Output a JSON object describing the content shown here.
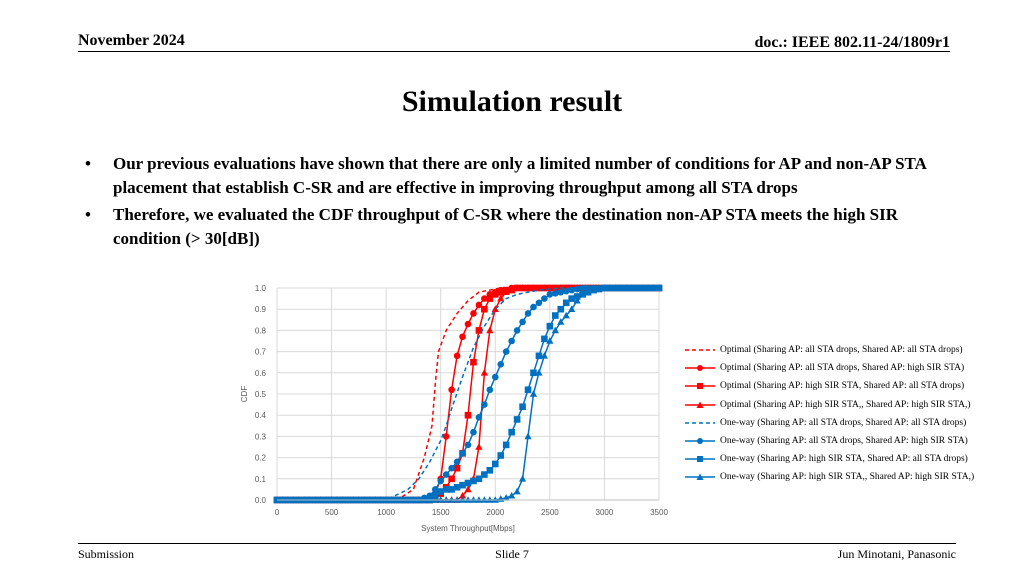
{
  "header": {
    "date": "November 2024",
    "doc": "doc.: IEEE 802.11-24/1809r1"
  },
  "title": "Simulation result",
  "bullets": [
    "Our previous evaluations have shown that there are only a limited number of conditions for AP and non-AP STA placement that establish C-SR and are effective in improving throughput among all STA drops",
    "Therefore, we evaluated the CDF throughput of C-SR where the destination non-AP STA meets the high SIR condition (> 30[dB])"
  ],
  "bullet_glyph": "•",
  "footer": {
    "left": "Submission",
    "center": "Slide 7",
    "right": "Jun Minotani, Panasonic"
  },
  "chart_data": {
    "type": "line",
    "xlabel": "System Throughput[Mbps]",
    "ylabel": "CDF",
    "xlim": [
      0,
      3500
    ],
    "ylim": [
      0,
      1
    ],
    "x_ticks": [
      "0",
      "500",
      "1000",
      "1500",
      "2000",
      "2500",
      "3000",
      "3500"
    ],
    "y_ticks": [
      "0.0",
      "0.1",
      "0.2",
      "0.3",
      "0.4",
      "0.5",
      "0.6",
      "0.7",
      "0.8",
      "0.9",
      "1.0"
    ],
    "grid": true,
    "legend_position": "right",
    "series": [
      {
        "name": "Optimal (Sharing AP: all STA drops, Shared AP: all STA drops)",
        "color": "#ff0000",
        "style": "dashed",
        "marker": "none",
        "x": [
          0,
          1100,
          1250,
          1350,
          1420,
          1450,
          1480,
          1550,
          1650,
          1750,
          1850,
          1950,
          2050,
          3500
        ],
        "y": [
          0,
          0,
          0.05,
          0.2,
          0.35,
          0.55,
          0.7,
          0.8,
          0.88,
          0.94,
          0.98,
          0.99,
          1.0,
          1.0
        ]
      },
      {
        "name": "Optimal (Sharing AP: all STA drops, Shared AP: high SIR STA)",
        "color": "#ff0000",
        "style": "solid",
        "marker": "circle",
        "x": [
          0,
          1300,
          1400,
          1450,
          1500,
          1550,
          1600,
          1650,
          1700,
          1750,
          1800,
          1850,
          1900,
          1950,
          2000,
          2050,
          2100,
          2150,
          2200,
          2300,
          3500
        ],
        "y": [
          0,
          0,
          0.01,
          0.03,
          0.1,
          0.3,
          0.52,
          0.68,
          0.77,
          0.83,
          0.88,
          0.92,
          0.95,
          0.97,
          0.98,
          0.99,
          0.99,
          1.0,
          1.0,
          1.0,
          1.0
        ]
      },
      {
        "name": "Optimal (Sharing AP: high SIR STA, Shared AP: all STA drops)",
        "color": "#ff0000",
        "style": "solid",
        "marker": "square",
        "x": [
          0,
          1400,
          1450,
          1500,
          1550,
          1600,
          1650,
          1700,
          1750,
          1800,
          1850,
          1900,
          1950,
          2000,
          2050,
          2100,
          2150,
          2200,
          2300,
          3500
        ],
        "y": [
          0,
          0,
          0.01,
          0.03,
          0.06,
          0.1,
          0.15,
          0.22,
          0.4,
          0.65,
          0.8,
          0.9,
          0.95,
          0.97,
          0.98,
          0.99,
          0.99,
          1.0,
          1.0,
          1.0
        ]
      },
      {
        "name": "Optimal (Sharing AP: high SIR STA,, Shared AP: high SIR STA,)",
        "color": "#ff0000",
        "style": "solid",
        "marker": "triangle",
        "x": [
          0,
          1650,
          1700,
          1750,
          1800,
          1850,
          1900,
          1950,
          2000,
          2050,
          2100,
          2150,
          2200,
          2300,
          3500
        ],
        "y": [
          0,
          0,
          0.02,
          0.05,
          0.1,
          0.25,
          0.6,
          0.8,
          0.9,
          0.95,
          0.98,
          0.99,
          1.0,
          1.0,
          1.0
        ]
      },
      {
        "name": "One-way (Sharing AP: all STA drops, Shared AP: all STA drops)",
        "color": "#0070c0",
        "style": "dashed",
        "marker": "none",
        "x": [
          0,
          1000,
          1200,
          1300,
          1400,
          1500,
          1550,
          1600,
          1700,
          1800,
          1900,
          2000,
          2100,
          2200,
          2300,
          2400,
          2600,
          3500
        ],
        "y": [
          0,
          0,
          0.05,
          0.1,
          0.18,
          0.28,
          0.35,
          0.43,
          0.58,
          0.72,
          0.82,
          0.9,
          0.95,
          0.97,
          0.98,
          0.99,
          1.0,
          1.0
        ]
      },
      {
        "name": "One-way (Sharing AP: all STA drops, Shared AP: high SIR STA)",
        "color": "#0070c0",
        "style": "solid",
        "marker": "circle",
        "x": [
          0,
          1300,
          1400,
          1450,
          1500,
          1550,
          1600,
          1650,
          1700,
          1750,
          1800,
          1850,
          1900,
          1950,
          2000,
          2050,
          2100,
          2150,
          2200,
          2250,
          2300,
          2350,
          2400,
          2450,
          2500,
          2600,
          2700,
          2800,
          3500
        ],
        "y": [
          0,
          0,
          0.02,
          0.05,
          0.09,
          0.12,
          0.15,
          0.18,
          0.22,
          0.26,
          0.32,
          0.39,
          0.45,
          0.52,
          0.58,
          0.64,
          0.7,
          0.75,
          0.8,
          0.84,
          0.88,
          0.91,
          0.93,
          0.95,
          0.97,
          0.98,
          0.99,
          1.0,
          1.0
        ]
      },
      {
        "name": "One-way (Sharing AP: high SIR STA, Shared AP: all STA drops)",
        "color": "#0070c0",
        "style": "solid",
        "marker": "square",
        "x": [
          0,
          1400,
          1450,
          1500,
          1550,
          1600,
          1650,
          1700,
          1750,
          1800,
          1850,
          1900,
          1950,
          2000,
          2050,
          2100,
          2150,
          2200,
          2250,
          2300,
          2350,
          2400,
          2450,
          2500,
          2550,
          2600,
          2650,
          2700,
          2800,
          2900,
          3000,
          3500
        ],
        "y": [
          0,
          0,
          0.02,
          0.04,
          0.05,
          0.05,
          0.06,
          0.07,
          0.08,
          0.09,
          0.1,
          0.12,
          0.14,
          0.17,
          0.21,
          0.26,
          0.32,
          0.38,
          0.44,
          0.52,
          0.6,
          0.68,
          0.76,
          0.82,
          0.87,
          0.9,
          0.93,
          0.95,
          0.97,
          0.99,
          1.0,
          1.0
        ]
      },
      {
        "name": "One-way (Sharing AP: high SIR STA,, Shared AP: high SIR STA,)",
        "color": "#0070c0",
        "style": "solid",
        "marker": "triangle",
        "x": [
          0,
          2000,
          2100,
          2150,
          2200,
          2250,
          2300,
          2350,
          2400,
          2450,
          2500,
          2550,
          2600,
          2650,
          2700,
          2750,
          2800,
          2850,
          2900,
          3000,
          3500
        ],
        "y": [
          0,
          0,
          0.01,
          0.02,
          0.04,
          0.1,
          0.3,
          0.5,
          0.6,
          0.68,
          0.75,
          0.8,
          0.84,
          0.87,
          0.9,
          0.94,
          0.97,
          0.99,
          1.0,
          1.0,
          1.0
        ]
      }
    ]
  }
}
